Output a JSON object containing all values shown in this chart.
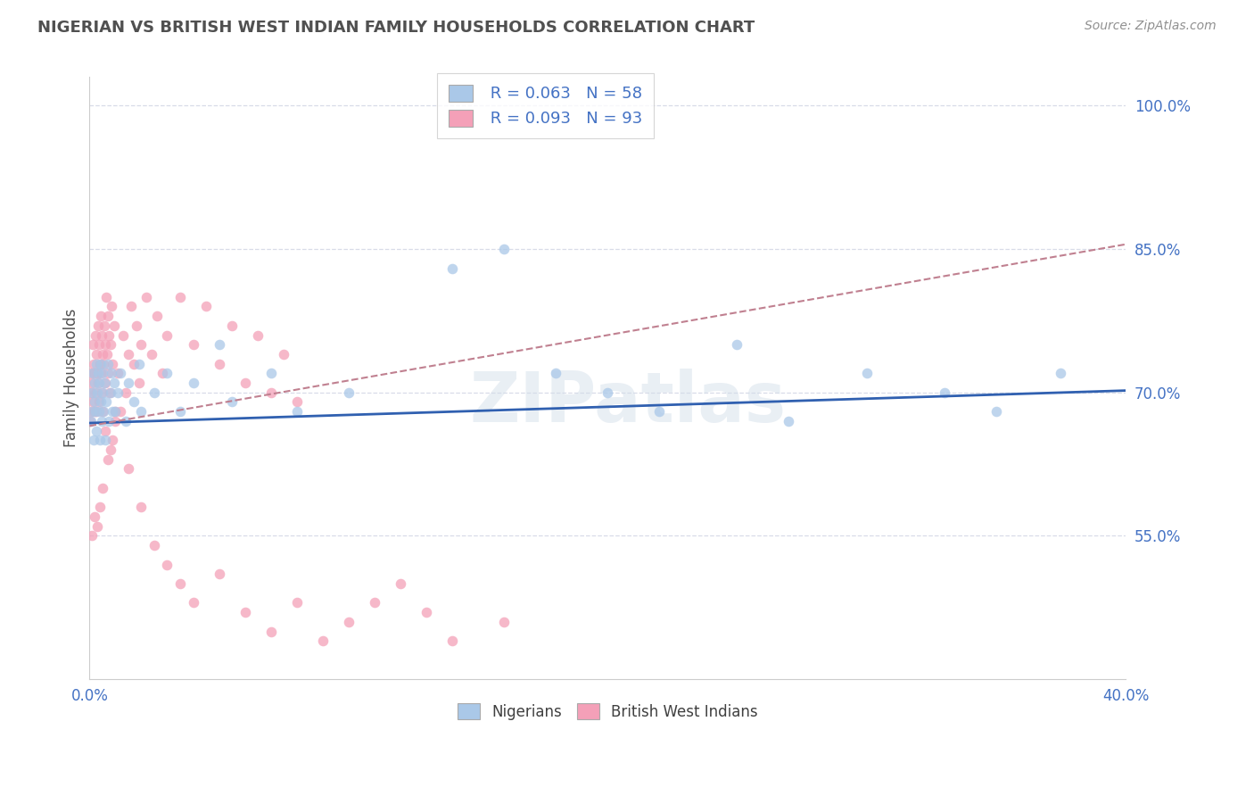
{
  "title": "NIGERIAN VS BRITISH WEST INDIAN FAMILY HOUSEHOLDS CORRELATION CHART",
  "source": "Source: ZipAtlas.com",
  "ylabel": "Family Households",
  "y_ticks": [
    55.0,
    70.0,
    85.0,
    100.0
  ],
  "x_range": [
    0.0,
    40.0
  ],
  "y_range": [
    40.0,
    103.0
  ],
  "legend_r_blue": "R = 0.063",
  "legend_n_blue": "N = 58",
  "legend_r_pink": "R = 0.093",
  "legend_n_pink": "N = 93",
  "legend_label_blue": "Nigerians",
  "legend_label_pink": "British West Indians",
  "blue_color": "#aac8e8",
  "pink_color": "#f4a0b8",
  "blue_line_color": "#3060b0",
  "pink_line_color": "#c08090",
  "axis_color": "#4472c4",
  "title_color": "#505050",
  "source_color": "#909090",
  "legend_text_color": "#4472c4",
  "watermark": "ZIPatlas",
  "grid_color": "#d8dce8",
  "blue_line_y0": 66.8,
  "blue_line_y1": 70.2,
  "pink_line_y0": 66.5,
  "pink_line_y1": 85.5,
  "nig_x": [
    0.05,
    0.08,
    0.1,
    0.12,
    0.15,
    0.18,
    0.2,
    0.22,
    0.25,
    0.28,
    0.3,
    0.32,
    0.35,
    0.38,
    0.4,
    0.42,
    0.45,
    0.48,
    0.5,
    0.52,
    0.55,
    0.58,
    0.6,
    0.65,
    0.7,
    0.75,
    0.8,
    0.85,
    0.9,
    0.95,
    1.0,
    1.1,
    1.2,
    1.4,
    1.5,
    1.7,
    1.9,
    2.0,
    2.5,
    3.0,
    3.5,
    4.0,
    5.0,
    7.0,
    8.0,
    10.0,
    14.0,
    16.0,
    18.0,
    20.0,
    22.0,
    25.0,
    27.0,
    30.0,
    33.0,
    35.0,
    37.5,
    5.5
  ],
  "nig_y": [
    67,
    70,
    68,
    72,
    65,
    69,
    71,
    68,
    73,
    66,
    70,
    72,
    68,
    71,
    65,
    69,
    73,
    67,
    70,
    72,
    68,
    71,
    65,
    69,
    73,
    67,
    70,
    72,
    68,
    71,
    68,
    70,
    72,
    67,
    71,
    69,
    73,
    68,
    70,
    72,
    68,
    71,
    75,
    72,
    68,
    70,
    83,
    85,
    72,
    70,
    68,
    75,
    67,
    72,
    70,
    68,
    72,
    69
  ],
  "bwi_x": [
    0.02,
    0.04,
    0.06,
    0.08,
    0.1,
    0.12,
    0.14,
    0.16,
    0.18,
    0.2,
    0.22,
    0.24,
    0.26,
    0.28,
    0.3,
    0.32,
    0.34,
    0.36,
    0.38,
    0.4,
    0.42,
    0.44,
    0.46,
    0.48,
    0.5,
    0.52,
    0.55,
    0.58,
    0.6,
    0.62,
    0.65,
    0.68,
    0.7,
    0.72,
    0.75,
    0.78,
    0.8,
    0.85,
    0.9,
    0.95,
    1.0,
    1.1,
    1.2,
    1.3,
    1.4,
    1.5,
    1.6,
    1.7,
    1.8,
    1.9,
    2.0,
    2.2,
    2.4,
    2.6,
    2.8,
    3.0,
    3.5,
    4.0,
    4.5,
    5.0,
    5.5,
    6.0,
    6.5,
    7.0,
    7.5,
    8.0,
    1.0,
    0.9,
    0.8,
    0.7,
    0.6,
    0.5,
    0.4,
    0.3,
    0.2,
    0.1,
    1.5,
    2.0,
    2.5,
    3.0,
    3.5,
    4.0,
    5.0,
    6.0,
    7.0,
    8.0,
    9.0,
    10.0,
    11.0,
    12.0,
    13.0,
    14.0,
    16.0
  ],
  "bwi_y": [
    67,
    70,
    72,
    68,
    71,
    75,
    69,
    73,
    68,
    72,
    76,
    70,
    74,
    68,
    72,
    77,
    71,
    75,
    69,
    73,
    78,
    72,
    76,
    70,
    74,
    68,
    73,
    77,
    71,
    75,
    80,
    74,
    78,
    72,
    76,
    70,
    75,
    79,
    73,
    77,
    67,
    72,
    68,
    76,
    70,
    74,
    79,
    73,
    77,
    71,
    75,
    80,
    74,
    78,
    72,
    76,
    80,
    75,
    79,
    73,
    77,
    71,
    76,
    70,
    74,
    69,
    68,
    65,
    64,
    63,
    66,
    60,
    58,
    56,
    57,
    55,
    62,
    58,
    54,
    52,
    50,
    48,
    51,
    47,
    45,
    48,
    44,
    46,
    48,
    50,
    47,
    44,
    46
  ]
}
